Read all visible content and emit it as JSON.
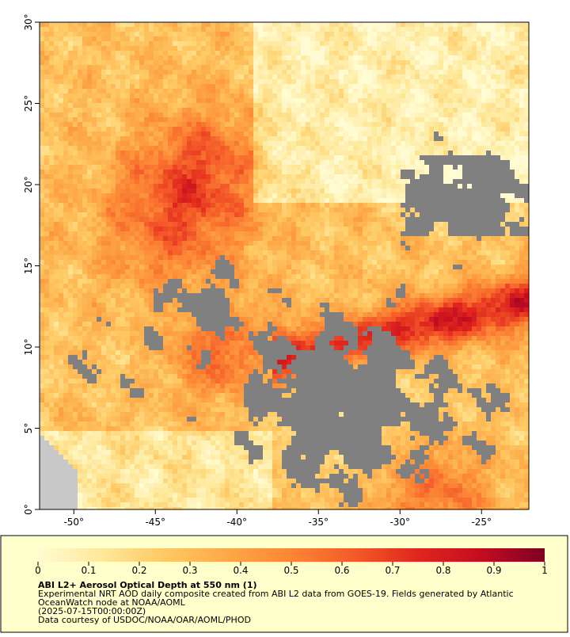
{
  "map": {
    "xlim": [
      -52.1,
      -22.1
    ],
    "ylim": [
      0,
      30
    ],
    "xticks": [
      {
        "value": -50,
        "label": "-50°"
      },
      {
        "value": -45,
        "label": "-45°"
      },
      {
        "value": -40,
        "label": "-40°"
      },
      {
        "value": -35,
        "label": "-35°"
      },
      {
        "value": -30,
        "label": "-30°"
      },
      {
        "value": -25,
        "label": "-25°"
      }
    ],
    "yticks": [
      {
        "value": 0,
        "label": "0°"
      },
      {
        "value": 5,
        "label": "5°"
      },
      {
        "value": 10,
        "label": "10°"
      },
      {
        "value": 15,
        "label": "15°"
      },
      {
        "value": 20,
        "label": "20°"
      },
      {
        "value": 25,
        "label": "25°"
      },
      {
        "value": 30,
        "label": "30°"
      }
    ],
    "missing_color": "#808080",
    "land_color": "#c8c8c8"
  },
  "colorbar": {
    "lim": [
      0,
      1
    ],
    "ticks": [
      0,
      0.1,
      0.2,
      0.3,
      0.4,
      0.5,
      0.6,
      0.7,
      0.8,
      0.9,
      1
    ],
    "colormap": [
      "#fffbd2",
      "#fee89a",
      "#fec964",
      "#fda847",
      "#fc8535",
      "#f45a28",
      "#e0261e",
      "#c30d20",
      "#7f0023"
    ],
    "title": "ABI L2+ Aerosol Optical Depth at 550 nm (1)",
    "lines": [
      "Experimental NRT AOD daily composite created from ABI L2 data from GOES-19. Fields generated by Atlantic",
      "OceanWatch node at NOAA/AOML",
      "(2025-07-15T00:00:00Z)",
      "Data courtesy of USDOC/NOAA/OAR/AOML/PHOD"
    ]
  }
}
